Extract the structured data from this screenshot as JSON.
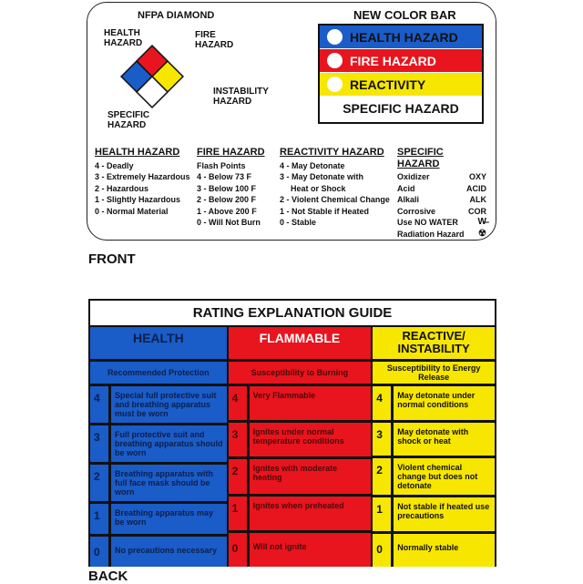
{
  "front": {
    "diamond_title": "NFPA DIAMOND",
    "labels": {
      "health": "HEALTH HAZARD",
      "fire": "FIRE HAZARD",
      "instability": "INSTABILITY HAZARD",
      "specific": "SPECIFIC HAZARD"
    },
    "colorbar": {
      "title": "NEW COLOR BAR",
      "rows": [
        {
          "label": "HEALTH HAZARD",
          "color": "#1a5cc8",
          "text": "#111"
        },
        {
          "label": "FIRE HAZARD",
          "color": "#e8141e",
          "text": "#fff"
        },
        {
          "label": "REACTIVITY",
          "color": "#f7e600",
          "text": "#111"
        },
        {
          "label": "SPECIFIC HAZARD",
          "color": "#ffffff",
          "text": "#111"
        }
      ]
    },
    "legend": {
      "health": {
        "title": "HEALTH HAZARD",
        "items": [
          "4 - Deadly",
          "3 - Extremely Hazardous",
          "2 - Hazardous",
          "1 - Slightly Hazardous",
          "0 - Normal Material"
        ]
      },
      "fire": {
        "title": "FIRE HAZARD",
        "items": [
          "Flash Points",
          "4 - Below 73 F",
          "3 - Below 100 F",
          "2 - Below 200 F",
          "1 - Above 200 F",
          "0 - Will Not Burn"
        ]
      },
      "reactivity": {
        "title": "REACTIVITY HAZARD",
        "items": [
          "4 - May Detonate",
          "3 - May Detonate with",
          "Heat or Shock",
          "2 - Violent Chemical Change",
          "1 - Not Stable if Heated",
          "0 - Stable"
        ]
      },
      "specific": {
        "title": "SPECIFIC HAZARD",
        "items": [
          {
            "name": "Oxidizer",
            "code": "OXY"
          },
          {
            "name": "Acid",
            "code": "ACID"
          },
          {
            "name": "Alkali",
            "code": "ALK"
          },
          {
            "name": "Corrosive",
            "code": "COR"
          },
          {
            "name": "Use NO WATER",
            "code": "W-icon"
          },
          {
            "name": "Radiation Hazard",
            "code": "radiation-icon"
          }
        ]
      }
    },
    "tag": "FRONT"
  },
  "back": {
    "title": "RATING EXPLANATION GUIDE",
    "columns": [
      {
        "header": "HEALTH",
        "sub": "Recommended Protection",
        "bg": "#1a5cc8",
        "fg": "#0d1f4a",
        "hfg": "#0d1f4a",
        "rows": [
          {
            "n": "4",
            "t": "Special full protective suit and breathing apparatus must be worn"
          },
          {
            "n": "3",
            "t": "Full protective suit and breathing apparatus should be worn"
          },
          {
            "n": "2",
            "t": "Breathing apparatus with full face mask should be worn"
          },
          {
            "n": "1",
            "t": "Breathing apparatus may be worn"
          },
          {
            "n": "0",
            "t": "No precautions necessary"
          }
        ]
      },
      {
        "header": "FLAMMABLE",
        "sub": "Susceptibility to Burning",
        "bg": "#e8141e",
        "fg": "#4a0a0a",
        "hfg": "#fff",
        "rows": [
          {
            "n": "4",
            "t": "Very Flammable"
          },
          {
            "n": "3",
            "t": "Ignites under normal temperature conditions"
          },
          {
            "n": "2",
            "t": "Ignites with moderate heating"
          },
          {
            "n": "1",
            "t": "Ignites when preheated"
          },
          {
            "n": "0",
            "t": "Will not ignite"
          }
        ]
      },
      {
        "header": "REACTIVE/ INSTABILITY",
        "sub": "Susceptibility to Energy Release",
        "bg": "#f7e600",
        "fg": "#111",
        "hfg": "#111",
        "rows": [
          {
            "n": "4",
            "t": "May detonate under normal conditions"
          },
          {
            "n": "3",
            "t": "May detonate with shock or heat"
          },
          {
            "n": "2",
            "t": "Violent chemical change but does not detonate"
          },
          {
            "n": "1",
            "t": "Not stable if heated use precautions"
          },
          {
            "n": "0",
            "t": "Normally stable"
          }
        ]
      }
    ],
    "tag": "BACK"
  }
}
